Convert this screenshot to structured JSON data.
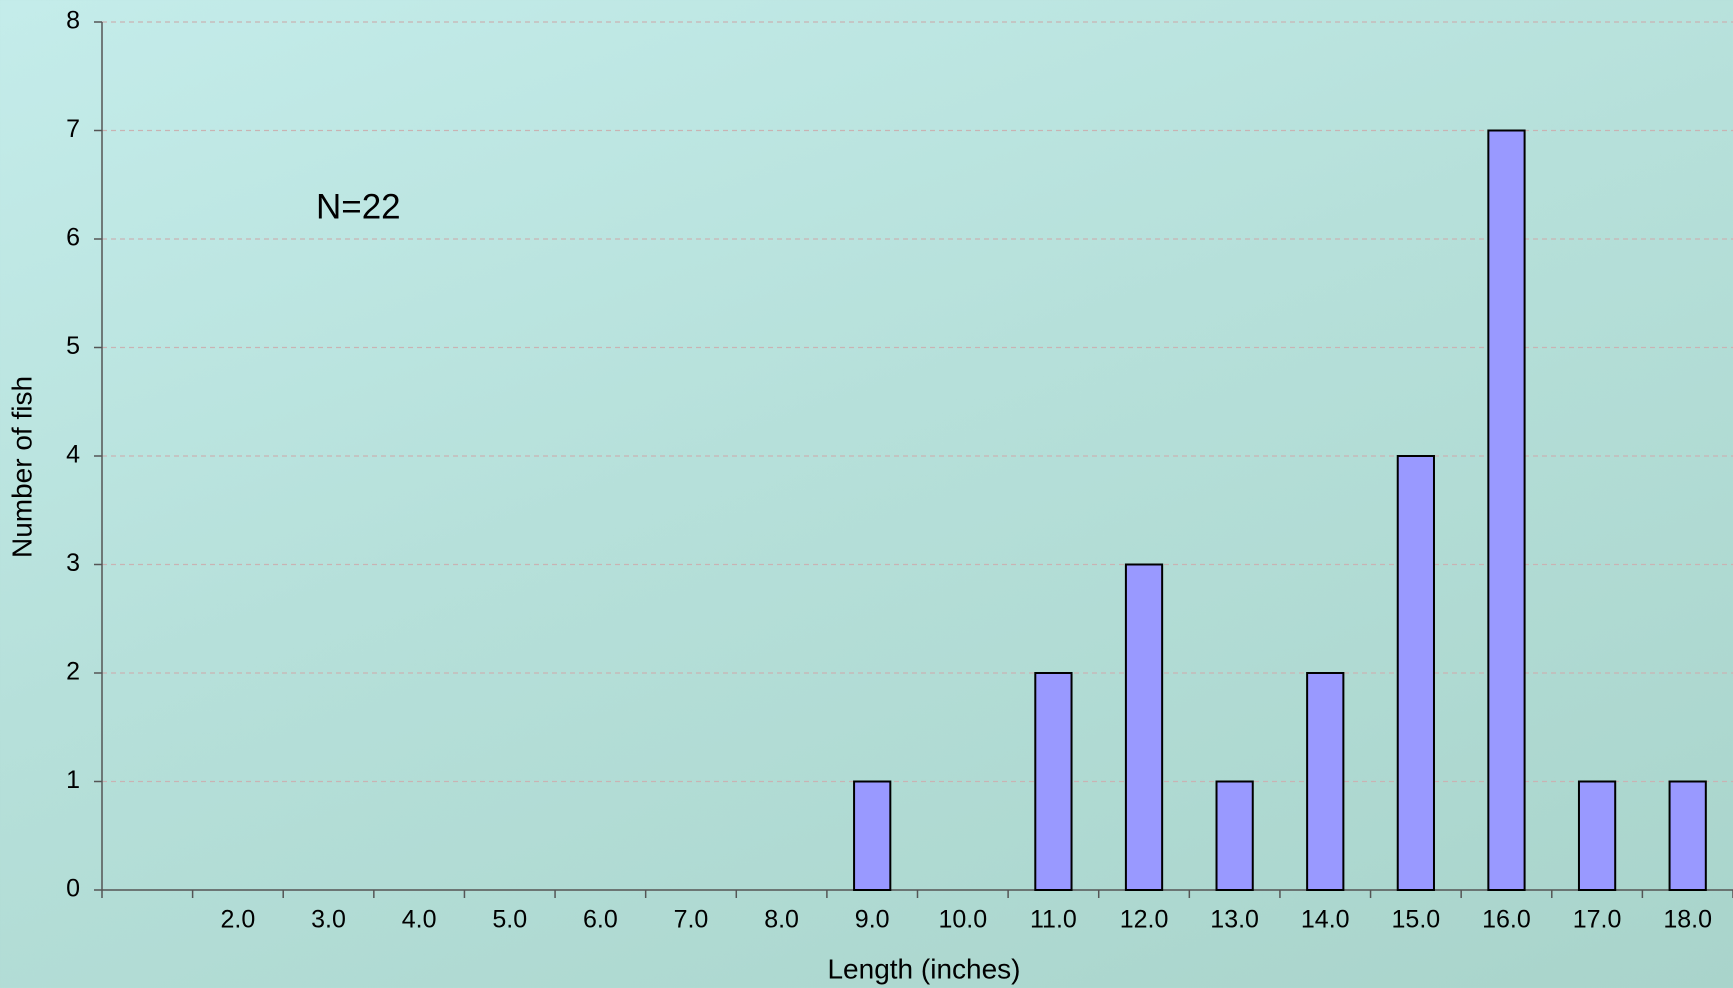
{
  "chart_data": {
    "type": "bar",
    "annotation": "N=22",
    "x_label": "Length (inches)",
    "y_label": "Number of fish",
    "categories": [
      null,
      "2.0",
      "3.0",
      "4.0",
      "5.0",
      "6.0",
      "7.0",
      "8.0",
      "9.0",
      "10.0",
      "11.0",
      "12.0",
      "13.0",
      "14.0",
      "15.0",
      "16.0",
      "17.0",
      "18.0"
    ],
    "values": [
      0,
      0,
      0,
      0,
      0,
      0,
      0,
      0,
      1,
      0,
      2,
      3,
      1,
      2,
      4,
      7,
      1,
      1
    ],
    "color": "#9999ff",
    "ylim": [
      0,
      8
    ],
    "yticks": [
      0,
      1,
      2,
      3,
      4,
      5,
      6,
      7,
      8
    ],
    "grid": true
  }
}
